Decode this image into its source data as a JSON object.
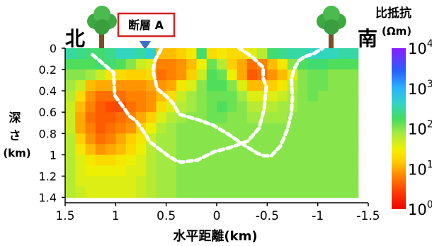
{
  "labels": {
    "north": "北",
    "south": "南",
    "fault": "断層 A",
    "colorbar_title": "比抵抗",
    "colorbar_unit": "(Ωm)"
  },
  "colors": {
    "fault_box_border": "#d42020",
    "fault_marker": "#3a6fc9",
    "boundary_line": "#ffffff"
  },
  "icons": [
    "tree-icon",
    "tree-icon"
  ],
  "chart_data": {
    "type": "heatmap",
    "xlabel": "水平距離(km)",
    "ylabel": "深さ(km)",
    "x_ticks": [
      "1.5",
      "1",
      "0.5",
      "0",
      "-0.5",
      "-1",
      "-1.5"
    ],
    "x_tick_values": [
      1.5,
      1,
      0.5,
      0,
      -0.5,
      -1,
      -1.5
    ],
    "y_ticks": [
      "0",
      "0.2",
      "0.4",
      "0.6",
      "0.8",
      "1",
      "1.2",
      "1.4"
    ],
    "y_tick_values": [
      0,
      0.2,
      0.4,
      0.6,
      0.8,
      1,
      1.2,
      1.4
    ],
    "xlim": [
      1.5,
      -1.5
    ],
    "ylim": [
      0,
      1.45
    ],
    "x_centers": [
      1.45,
      1.35,
      1.25,
      1.15,
      1.05,
      0.95,
      0.85,
      0.75,
      0.65,
      0.55,
      0.45,
      0.35,
      0.25,
      0.15,
      0.05,
      -0.05,
      -0.15,
      -0.25,
      -0.35,
      -0.45,
      -0.55,
      -0.65,
      -0.75,
      -0.85,
      -0.95,
      -1.05,
      -1.15,
      -1.25,
      -1.35
    ],
    "y_centers": [
      0.05,
      0.15,
      0.25,
      0.35,
      0.45,
      0.55,
      0.65,
      0.75,
      0.85,
      0.95,
      1.05,
      1.15,
      1.25,
      1.35
    ],
    "log10_resistivity": [
      [
        2.5,
        2.4,
        2.3,
        2.3,
        2.4,
        2.6,
        2.6,
        2.5,
        2.7,
        1.1,
        1.1,
        1.2,
        1.4,
        2.3,
        1.3,
        1.4,
        1.3,
        1.3,
        1.6,
        1.8,
        2.3,
        2.4,
        2.5,
        2.5,
        2.6,
        2.6,
        2.6,
        2.5,
        2.5
      ],
      [
        2.2,
        2.2,
        2.2,
        2.3,
        2.3,
        2.2,
        2.0,
        1.7,
        1.6,
        0.8,
        0.8,
        0.9,
        1.1,
        1.5,
        2.1,
        1.8,
        1.2,
        1.0,
        0.7,
        0.8,
        1.1,
        1.4,
        2.0,
        2.2,
        2.3,
        2.3,
        2.2,
        2.2,
        2.2
      ],
      [
        2.0,
        2.0,
        1.9,
        1.7,
        1.4,
        1.3,
        1.2,
        1.2,
        1.3,
        0.7,
        0.8,
        0.9,
        1.2,
        1.7,
        2.2,
        2.1,
        1.5,
        1.0,
        0.6,
        0.7,
        0.9,
        1.1,
        1.6,
        2.0,
        2.1,
        2.1,
        2.0,
        2.0,
        2.0
      ],
      [
        1.9,
        1.7,
        1.1,
        1.0,
        1.0,
        0.9,
        0.9,
        0.9,
        1.0,
        0.9,
        1.0,
        1.4,
        1.6,
        2.0,
        2.2,
        2.2,
        2.0,
        1.6,
        1.1,
        1.1,
        1.2,
        1.4,
        1.8,
        2.0,
        2.1,
        2.1,
        2.0,
        2.0,
        2.0
      ],
      [
        1.8,
        1.3,
        0.9,
        0.7,
        0.7,
        0.7,
        0.8,
        0.8,
        0.9,
        1.1,
        1.3,
        1.7,
        1.9,
        2.0,
        2.1,
        2.1,
        2.1,
        1.9,
        1.6,
        1.6,
        1.6,
        1.7,
        1.9,
        2.0,
        2.1,
        2.0,
        2.0,
        2.0,
        2.0
      ],
      [
        1.7,
        1.1,
        0.8,
        0.6,
        0.5,
        0.5,
        0.7,
        0.8,
        0.9,
        1.3,
        1.6,
        1.8,
        1.9,
        2.0,
        2.1,
        2.2,
        2.1,
        2.0,
        1.8,
        1.8,
        1.8,
        1.9,
        1.9,
        2.0,
        2.0,
        2.0,
        2.0,
        2.0,
        2.0
      ],
      [
        1.7,
        1.0,
        0.7,
        0.6,
        0.6,
        0.7,
        0.8,
        1.0,
        1.2,
        1.6,
        1.8,
        1.9,
        2.0,
        2.0,
        2.1,
        2.1,
        2.0,
        2.0,
        1.9,
        1.9,
        1.9,
        1.9,
        2.0,
        2.0,
        2.0,
        2.0,
        2.0,
        2.0,
        2.0
      ],
      [
        1.7,
        1.0,
        0.8,
        0.6,
        0.7,
        0.8,
        0.9,
        1.2,
        1.5,
        1.8,
        1.9,
        2.0,
        2.0,
        2.0,
        2.0,
        2.0,
        2.0,
        2.0,
        2.0,
        2.0,
        2.0,
        2.0,
        2.0,
        2.0,
        2.0,
        2.0,
        2.0,
        2.0,
        2.0
      ],
      [
        1.8,
        1.2,
        0.9,
        0.7,
        0.8,
        1.0,
        1.2,
        1.4,
        1.7,
        1.9,
        1.9,
        2.0,
        2.0,
        2.0,
        2.0,
        2.0,
        2.0,
        2.0,
        2.0,
        2.0,
        2.0,
        2.0,
        2.0,
        2.0,
        2.0,
        2.0,
        2.0,
        2.0,
        2.0
      ],
      [
        1.8,
        1.4,
        1.1,
        0.9,
        1.0,
        1.1,
        1.3,
        1.5,
        1.8,
        1.9,
        1.9,
        2.0,
        2.0,
        2.0,
        2.0,
        2.0,
        2.0,
        2.0,
        2.0,
        2.0,
        2.0,
        2.0,
        2.0,
        2.0,
        2.0,
        2.0,
        2.0,
        2.0,
        2.0
      ],
      [
        1.8,
        1.6,
        1.4,
        1.3,
        1.3,
        1.4,
        1.5,
        1.6,
        1.8,
        1.9,
        1.9,
        2.0,
        2.0,
        2.0,
        2.0,
        2.0,
        2.0,
        2.0,
        2.0,
        2.0,
        2.0,
        2.0,
        2.0,
        2.0,
        2.0,
        2.0,
        2.0,
        2.0,
        2.0
      ],
      [
        1.8,
        1.6,
        1.5,
        1.5,
        1.5,
        1.5,
        1.6,
        1.6,
        1.8,
        1.9,
        1.9,
        2.0,
        2.0,
        2.0,
        2.0,
        2.0,
        2.0,
        2.0,
        2.0,
        2.0,
        2.0,
        2.0,
        2.0,
        2.0,
        2.0,
        2.0,
        2.0,
        2.0,
        2.0
      ],
      [
        1.8,
        1.6,
        1.6,
        1.6,
        1.6,
        1.6,
        1.6,
        1.7,
        1.8,
        1.9,
        1.9,
        2.0,
        2.0,
        2.0,
        2.0,
        2.0,
        2.0,
        2.0,
        2.0,
        2.0,
        2.0,
        2.0,
        2.0,
        2.0,
        2.0,
        2.0,
        2.0,
        2.0,
        2.0
      ],
      [
        1.8,
        1.7,
        1.6,
        1.6,
        1.6,
        1.6,
        1.6,
        1.7,
        1.8,
        1.9,
        1.9,
        2.0,
        2.0,
        2.0,
        2.0,
        2.0,
        2.0,
        2.0,
        2.0,
        2.0,
        2.0,
        2.0,
        2.0,
        2.0,
        2.0,
        2.0,
        2.0,
        2.0,
        2.0
      ]
    ],
    "boundary_north": [
      [
        1.23,
        0.06
      ],
      [
        1.02,
        0.23
      ],
      [
        1.01,
        0.44
      ],
      [
        0.86,
        0.64
      ],
      [
        0.8,
        0.68
      ],
      [
        0.71,
        0.8
      ],
      [
        0.66,
        0.88
      ],
      [
        0.48,
        1.01
      ],
      [
        0.41,
        1.05
      ],
      [
        0.35,
        1.07
      ],
      [
        0.28,
        1.06
      ],
      [
        0.19,
        1.05
      ],
      [
        0.13,
        1.02
      ],
      [
        0.02,
        0.97
      ],
      [
        -0.14,
        0.93
      ],
      [
        -0.31,
        0.87
      ],
      [
        -0.42,
        0.75
      ],
      [
        -0.47,
        0.57
      ],
      [
        -0.49,
        0.36
      ],
      [
        -0.46,
        0.28
      ],
      [
        -0.46,
        0.18
      ],
      [
        -0.35,
        0.08
      ],
      [
        -0.21,
        -0.01
      ]
    ],
    "boundary_south": [
      [
        0.55,
        0.01
      ],
      [
        0.61,
        0.11
      ],
      [
        0.63,
        0.21
      ],
      [
        0.59,
        0.38
      ],
      [
        0.5,
        0.45
      ],
      [
        0.43,
        0.52
      ],
      [
        0.37,
        0.62
      ],
      [
        0.19,
        0.67
      ],
      [
        0.04,
        0.72
      ],
      [
        -0.12,
        0.81
      ],
      [
        -0.29,
        0.92
      ],
      [
        -0.41,
        0.99
      ],
      [
        -0.47,
        1.01
      ],
      [
        -0.54,
        1.01
      ],
      [
        -0.63,
        0.92
      ],
      [
        -0.7,
        0.76
      ],
      [
        -0.74,
        0.6
      ],
      [
        -0.75,
        0.46
      ],
      [
        -0.74,
        0.3
      ],
      [
        -0.76,
        0.21
      ],
      [
        -0.81,
        0.12
      ],
      [
        -0.87,
        0.08
      ],
      [
        -0.96,
        0.05
      ],
      [
        -1.05,
        0.0
      ]
    ],
    "colorbar": {
      "scale": "log",
      "range": [
        1,
        10000
      ],
      "tick_values": [
        1,
        10,
        100,
        1000,
        10000
      ],
      "tick_labels": [
        {
          "base": "10",
          "exp": "0"
        },
        {
          "base": "10",
          "exp": "1"
        },
        {
          "base": "10",
          "exp": "2"
        },
        {
          "base": "10",
          "exp": "3"
        },
        {
          "base": "10",
          "exp": "4"
        }
      ]
    }
  }
}
